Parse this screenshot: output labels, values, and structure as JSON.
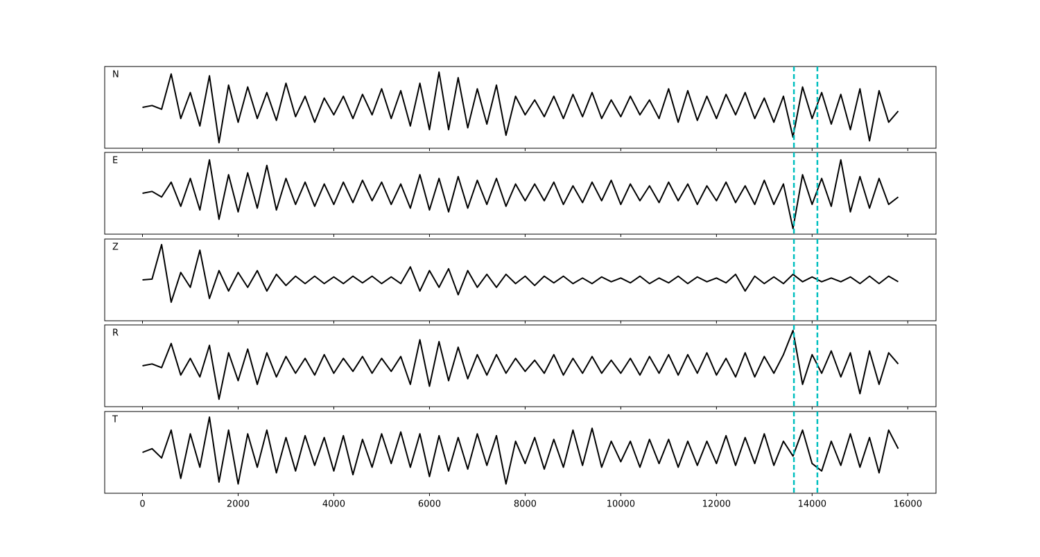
{
  "chart_data": {
    "type": "line",
    "layout": "stacked",
    "x": [
      0,
      200,
      400,
      600,
      800,
      1000,
      1200,
      1400,
      1600,
      1800,
      2000,
      2200,
      2400,
      2600,
      2800,
      3000,
      3200,
      3400,
      3600,
      3800,
      4000,
      4200,
      4400,
      4600,
      4800,
      5000,
      5200,
      5400,
      5600,
      5800,
      6000,
      6200,
      6400,
      6600,
      6800,
      7000,
      7200,
      7400,
      7600,
      7800,
      8000,
      8200,
      8400,
      8600,
      8800,
      9000,
      9200,
      9400,
      9600,
      9800,
      10000,
      10200,
      10400,
      10600,
      10800,
      11000,
      11200,
      11400,
      11600,
      11800,
      12000,
      12200,
      12400,
      12600,
      12800,
      13000,
      13200,
      13400,
      13600,
      13800,
      14000,
      14200,
      14400,
      14600,
      14800,
      15000,
      15200,
      15400,
      15600,
      15800
    ],
    "xlim": [
      -790,
      16590
    ],
    "xticks": [
      0,
      2000,
      4000,
      6000,
      8000,
      10000,
      12000,
      14000,
      16000
    ],
    "ylim": [
      -1.1,
      1.1
    ],
    "line_color": "#000000",
    "series": [
      {
        "name": "N",
        "values": [
          0,
          0.05,
          -0.05,
          0.9,
          -0.3,
          0.4,
          -0.5,
          0.85,
          -0.95,
          0.6,
          -0.4,
          0.55,
          -0.3,
          0.4,
          -0.35,
          0.65,
          -0.25,
          0.3,
          -0.4,
          0.25,
          -0.2,
          0.3,
          -0.3,
          0.35,
          -0.2,
          0.5,
          -0.3,
          0.45,
          -0.5,
          0.65,
          -0.6,
          0.95,
          -0.6,
          0.8,
          -0.55,
          0.5,
          -0.45,
          0.6,
          -0.75,
          0.3,
          -0.2,
          0.2,
          -0.25,
          0.3,
          -0.3,
          0.35,
          -0.25,
          0.4,
          -0.3,
          0.2,
          -0.25,
          0.3,
          -0.2,
          0.2,
          -0.3,
          0.5,
          -0.4,
          0.45,
          -0.35,
          0.3,
          -0.3,
          0.35,
          -0.2,
          0.4,
          -0.3,
          0.25,
          -0.4,
          0.3,
          -0.8,
          0.55,
          -0.3,
          0.4,
          -0.45,
          0.35,
          -0.6,
          0.5,
          -0.9,
          0.45,
          -0.4,
          -0.1
        ]
      },
      {
        "name": "E",
        "values": [
          0,
          0.05,
          -0.1,
          0.3,
          -0.35,
          0.4,
          -0.45,
          0.9,
          -0.7,
          0.5,
          -0.5,
          0.55,
          -0.4,
          0.75,
          -0.45,
          0.4,
          -0.3,
          0.3,
          -0.35,
          0.25,
          -0.3,
          0.3,
          -0.25,
          0.35,
          -0.2,
          0.3,
          -0.3,
          0.25,
          -0.4,
          0.5,
          -0.45,
          0.4,
          -0.5,
          0.45,
          -0.4,
          0.35,
          -0.3,
          0.4,
          -0.35,
          0.25,
          -0.2,
          0.25,
          -0.2,
          0.3,
          -0.3,
          0.2,
          -0.25,
          0.3,
          -0.2,
          0.35,
          -0.3,
          0.25,
          -0.2,
          0.2,
          -0.25,
          0.3,
          -0.2,
          0.25,
          -0.3,
          0.2,
          -0.2,
          0.3,
          -0.25,
          0.2,
          -0.3,
          0.35,
          -0.3,
          0.25,
          -0.95,
          0.5,
          -0.3,
          0.4,
          -0.35,
          0.9,
          -0.5,
          0.45,
          -0.4,
          0.4,
          -0.3,
          -0.1
        ]
      },
      {
        "name": "Z",
        "values": [
          0,
          0.02,
          0.95,
          -0.6,
          0.2,
          -0.2,
          0.8,
          -0.5,
          0.25,
          -0.3,
          0.2,
          -0.2,
          0.25,
          -0.3,
          0.15,
          -0.15,
          0.1,
          -0.1,
          0.1,
          -0.1,
          0.08,
          -0.1,
          0.1,
          -0.08,
          0.1,
          -0.1,
          0.08,
          -0.1,
          0.35,
          -0.3,
          0.25,
          -0.2,
          0.3,
          -0.4,
          0.25,
          -0.2,
          0.15,
          -0.2,
          0.15,
          -0.1,
          0.1,
          -0.15,
          0.1,
          -0.08,
          0.1,
          -0.1,
          0.05,
          -0.1,
          0.08,
          -0.05,
          0.05,
          -0.08,
          0.1,
          -0.1,
          0.05,
          -0.08,
          0.1,
          -0.1,
          0.08,
          -0.05,
          0.05,
          -0.08,
          0.15,
          -0.3,
          0.1,
          -0.1,
          0.08,
          -0.1,
          0.15,
          -0.05,
          0.08,
          -0.05,
          0.05,
          -0.05,
          0.08,
          -0.1,
          0.1,
          -0.1,
          0.1,
          -0.05
        ]
      },
      {
        "name": "R",
        "values": [
          0,
          0.05,
          -0.05,
          0.6,
          -0.25,
          0.2,
          -0.3,
          0.55,
          -0.9,
          0.35,
          -0.4,
          0.45,
          -0.5,
          0.35,
          -0.3,
          0.25,
          -0.2,
          0.2,
          -0.25,
          0.3,
          -0.2,
          0.2,
          -0.15,
          0.25,
          -0.2,
          0.2,
          -0.15,
          0.25,
          -0.5,
          0.7,
          -0.55,
          0.65,
          -0.4,
          0.5,
          -0.35,
          0.3,
          -0.25,
          0.3,
          -0.2,
          0.2,
          -0.15,
          0.15,
          -0.2,
          0.3,
          -0.25,
          0.2,
          -0.2,
          0.25,
          -0.2,
          0.15,
          -0.2,
          0.2,
          -0.25,
          0.25,
          -0.2,
          0.3,
          -0.25,
          0.3,
          -0.2,
          0.35,
          -0.25,
          0.2,
          -0.3,
          0.35,
          -0.3,
          0.25,
          -0.2,
          0.3,
          0.95,
          -0.5,
          0.3,
          -0.2,
          0.4,
          -0.3,
          0.35,
          -0.75,
          0.4,
          -0.5,
          0.35,
          0.05
        ]
      },
      {
        "name": "T",
        "values": [
          0,
          0.1,
          -0.15,
          0.6,
          -0.7,
          0.5,
          -0.4,
          0.95,
          -0.8,
          0.6,
          -0.85,
          0.5,
          -0.4,
          0.6,
          -0.55,
          0.4,
          -0.5,
          0.45,
          -0.35,
          0.4,
          -0.5,
          0.45,
          -0.6,
          0.35,
          -0.4,
          0.5,
          -0.3,
          0.55,
          -0.4,
          0.5,
          -0.65,
          0.45,
          -0.5,
          0.4,
          -0.45,
          0.5,
          -0.35,
          0.45,
          -0.85,
          0.3,
          -0.3,
          0.4,
          -0.45,
          0.35,
          -0.4,
          0.6,
          -0.35,
          0.65,
          -0.4,
          0.3,
          -0.25,
          0.3,
          -0.4,
          0.35,
          -0.3,
          0.35,
          -0.4,
          0.3,
          -0.35,
          0.3,
          -0.3,
          0.45,
          -0.35,
          0.4,
          -0.3,
          0.5,
          -0.35,
          0.3,
          -0.1,
          0.6,
          -0.3,
          -0.5,
          0.3,
          -0.35,
          0.5,
          -0.4,
          0.4,
          -0.55,
          0.6,
          0.1
        ]
      }
    ],
    "vlines": [
      13620,
      14110
    ],
    "vline_color": "#00bfbf"
  }
}
